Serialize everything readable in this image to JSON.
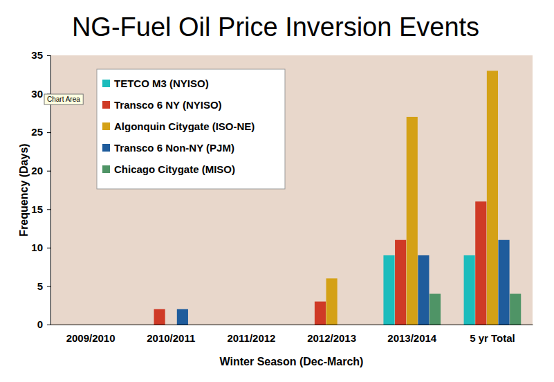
{
  "chart_data": {
    "type": "bar",
    "title": "NG-Fuel Oil Price Inversion Events",
    "x_label": "Winter Season (Dec-March)",
    "y_label": "Frequency (Days)",
    "categories": [
      "2009/2010",
      "2010/2011",
      "2011/2012",
      "2012/2013",
      "2013/2014",
      "5 yr Total"
    ],
    "series": [
      {
        "name": "TETCO M3 (NYISO)",
        "color": "#1cbcbc",
        "values": [
          0,
          0,
          0,
          0,
          9,
          9
        ]
      },
      {
        "name": "Transco 6 NY (NYISO)",
        "color": "#cf3a26",
        "values": [
          0,
          2,
          0,
          3,
          11,
          16
        ]
      },
      {
        "name": "Algonquin Citygate (ISO-NE)",
        "color": "#d4a116",
        "values": [
          0,
          0,
          0,
          6,
          27,
          33
        ]
      },
      {
        "name": "Transco 6 Non-NY (PJM)",
        "color": "#1f5c9c",
        "values": [
          0,
          2,
          0,
          0,
          9,
          11
        ]
      },
      {
        "name": "Chicago Citygate (MISO)",
        "color": "#4f9466",
        "values": [
          0,
          0,
          0,
          0,
          4,
          4
        ]
      }
    ],
    "ylim": [
      0,
      35
    ],
    "yticks": [
      0,
      5,
      10,
      15,
      20,
      25,
      30,
      35
    ],
    "grid": false,
    "legend": "top-left",
    "annotations": [
      {
        "text": "Chart Area"
      }
    ]
  }
}
